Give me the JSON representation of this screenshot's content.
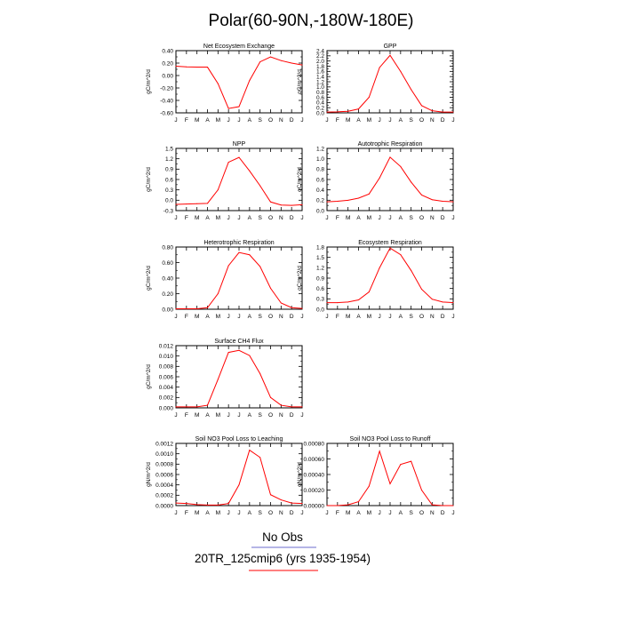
{
  "title": "Polar(60-90N,-180W-180E)",
  "legend": {
    "items": [
      {
        "label": "No Obs",
        "color": "#6b6bcc"
      },
      {
        "label": "20TR_125cmip6 (yrs 1935-1954)",
        "color": "#ff0000"
      }
    ]
  },
  "series_color": "#ff0000",
  "chart_data": [
    {
      "type": "line",
      "title": "Net Ecosystem Exchange",
      "ylabel": "gC/m^2/d",
      "x": [
        "J",
        "F",
        "M",
        "A",
        "M",
        "J",
        "J",
        "A",
        "S",
        "O",
        "N",
        "D",
        "J"
      ],
      "ylim": [
        -0.6,
        0.4
      ],
      "yticks": [
        "0.40",
        "0.20",
        "0.00",
        "-0.20",
        "-0.40",
        "-0.60"
      ],
      "values": [
        0.15,
        0.14,
        0.135,
        0.135,
        -0.13,
        -0.53,
        -0.5,
        -0.08,
        0.22,
        0.3,
        0.24,
        0.2,
        0.17
      ]
    },
    {
      "type": "line",
      "title": "GPP",
      "ylabel": "gC/m^2/d",
      "x": [
        "J",
        "F",
        "M",
        "A",
        "M",
        "J",
        "J",
        "A",
        "S",
        "O",
        "N",
        "D",
        "J"
      ],
      "ylim": [
        0,
        2.4
      ],
      "yticks": [
        "2.4",
        "2.2",
        "2.0",
        "1.8",
        "1.6",
        "1.4",
        "1.2",
        "1.0",
        "0.8",
        "0.6",
        "0.4",
        "0.2",
        "0.0"
      ],
      "values": [
        0.03,
        0.04,
        0.06,
        0.15,
        0.6,
        1.75,
        2.22,
        1.6,
        0.9,
        0.28,
        0.08,
        0.03,
        0.03
      ]
    },
    {
      "type": "line",
      "title": "NPP",
      "ylabel": "gC/m^2/d",
      "x": [
        "J",
        "F",
        "M",
        "A",
        "M",
        "J",
        "J",
        "A",
        "S",
        "O",
        "N",
        "D",
        "J"
      ],
      "ylim": [
        -0.3,
        1.5
      ],
      "yticks": [
        "1.5",
        "1.2",
        "0.9",
        "0.6",
        "0.3",
        "0.0",
        "-0.3"
      ],
      "values": [
        -0.12,
        -0.11,
        -0.1,
        -0.09,
        0.3,
        1.1,
        1.24,
        0.85,
        0.42,
        -0.05,
        -0.14,
        -0.15,
        -0.13
      ]
    },
    {
      "type": "line",
      "title": "Autotrophic Respiration",
      "ylabel": "gC/m^2/d",
      "x": [
        "J",
        "F",
        "M",
        "A",
        "M",
        "J",
        "J",
        "A",
        "S",
        "O",
        "N",
        "D",
        "J"
      ],
      "ylim": [
        0,
        1.2
      ],
      "yticks": [
        "1.2",
        "1.0",
        "0.8",
        "0.6",
        "0.4",
        "0.2",
        "0.0"
      ],
      "values": [
        0.17,
        0.18,
        0.2,
        0.24,
        0.32,
        0.63,
        1.03,
        0.85,
        0.55,
        0.3,
        0.21,
        0.18,
        0.17
      ]
    },
    {
      "type": "line",
      "title": "Heterotrophic Respiration",
      "ylabel": "gC/m^2/d",
      "x": [
        "J",
        "F",
        "M",
        "A",
        "M",
        "J",
        "J",
        "A",
        "S",
        "O",
        "N",
        "D",
        "J"
      ],
      "ylim": [
        0,
        0.8
      ],
      "yticks": [
        "0.80",
        "0.60",
        "0.40",
        "0.20",
        "0.00"
      ],
      "values": [
        0.005,
        0.005,
        0.006,
        0.02,
        0.2,
        0.56,
        0.73,
        0.7,
        0.55,
        0.27,
        0.08,
        0.02,
        0.01
      ]
    },
    {
      "type": "line",
      "title": "Ecosystem Respiration",
      "ylabel": "gC/m^2/d",
      "x": [
        "J",
        "F",
        "M",
        "A",
        "M",
        "J",
        "J",
        "A",
        "S",
        "O",
        "N",
        "D",
        "J"
      ],
      "ylim": [
        0,
        1.8
      ],
      "yticks": [
        "1.8",
        "1.5",
        "1.2",
        "0.9",
        "0.6",
        "0.3",
        "0.0"
      ],
      "values": [
        0.19,
        0.19,
        0.21,
        0.27,
        0.5,
        1.2,
        1.77,
        1.58,
        1.12,
        0.58,
        0.29,
        0.21,
        0.19
      ]
    },
    {
      "type": "line",
      "title": "Surface CH4 Flux",
      "ylabel": "gC/m^2/d",
      "x": [
        "J",
        "F",
        "M",
        "A",
        "M",
        "J",
        "J",
        "A",
        "S",
        "O",
        "N",
        "D",
        "J"
      ],
      "ylim": [
        0,
        0.012
      ],
      "yticks": [
        "0.012",
        "0.010",
        "0.008",
        "0.006",
        "0.004",
        "0.002",
        "0.000"
      ],
      "values": [
        0.0002,
        0.0002,
        0.0002,
        0.0005,
        0.0055,
        0.0107,
        0.0111,
        0.0101,
        0.0066,
        0.002,
        0.0005,
        0.0002,
        0.0002
      ]
    },
    {
      "type": "line",
      "title": "Soil NO3 Pool Loss to Leaching",
      "ylabel": "gN/m^2/d",
      "x": [
        "J",
        "F",
        "M",
        "A",
        "M",
        "J",
        "J",
        "A",
        "S",
        "O",
        "N",
        "D",
        "J"
      ],
      "ylim": [
        0,
        0.0012
      ],
      "yticks": [
        "0.0012",
        "0.0010",
        "0.0008",
        "0.0006",
        "0.0004",
        "0.0002",
        "0.0000"
      ],
      "values": [
        5e-05,
        4e-05,
        2e-05,
        1e-05,
        1e-05,
        4e-05,
        0.0004,
        0.00107,
        0.00093,
        0.00021,
        0.00011,
        5e-05,
        4e-05
      ]
    },
    {
      "type": "line",
      "title": "Soil NO3 Pool Loss to Runoff",
      "ylabel": "gN/m^2/d",
      "x": [
        "J",
        "F",
        "M",
        "A",
        "M",
        "J",
        "J",
        "A",
        "S",
        "O",
        "N",
        "D",
        "J"
      ],
      "ylim": [
        0,
        0.0008
      ],
      "yticks": [
        "0.00080",
        "0.00060",
        "0.00040",
        "0.00020",
        "0.00000"
      ],
      "values": [
        0.0,
        0.0,
        1e-05,
        5e-05,
        0.00025,
        0.0007,
        0.00028,
        0.00053,
        0.00057,
        0.0002,
        1e-05,
        0.0,
        0.0
      ]
    }
  ]
}
